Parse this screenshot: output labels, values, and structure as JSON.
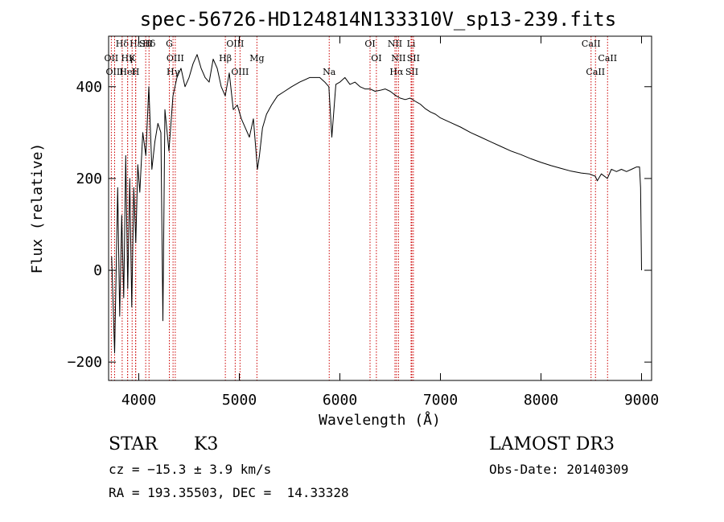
{
  "chart_data": {
    "type": "line",
    "title": "spec-56726-HD124814N133310V_sp13-239.fits",
    "xlabel": "Wavelength (Å)",
    "ylabel": "Flux (relative)",
    "xlim": [
      3700,
      9100
    ],
    "ylim": [
      -240,
      510
    ],
    "x_ticks": [
      4000,
      5000,
      6000,
      7000,
      8000,
      9000
    ],
    "x_tick_labels": [
      "4000",
      "5000",
      "6000",
      "7000",
      "8000",
      "9000"
    ],
    "y_ticks": [
      -200,
      0,
      200,
      400
    ],
    "y_tick_labels": [
      "−200",
      "0",
      "200",
      "400"
    ],
    "line_color": "#000000",
    "marker_color": "#cc0000",
    "series": [
      {
        "name": "flux",
        "x": [
          3730,
          3760,
          3790,
          3810,
          3830,
          3850,
          3870,
          3890,
          3910,
          3930,
          3950,
          3970,
          3990,
          4010,
          4040,
          4070,
          4100,
          4130,
          4160,
          4190,
          4220,
          4240,
          4260,
          4300,
          4340,
          4380,
          4420,
          4460,
          4500,
          4540,
          4580,
          4620,
          4660,
          4700,
          4740,
          4780,
          4820,
          4860,
          4900,
          4940,
          4980,
          5020,
          5060,
          5100,
          5140,
          5180,
          5200,
          5230,
          5270,
          5320,
          5380,
          5450,
          5520,
          5600,
          5700,
          5800,
          5850,
          5890,
          5920,
          5960,
          6000,
          6050,
          6100,
          6150,
          6200,
          6250,
          6300,
          6350,
          6400,
          6450,
          6500,
          6560,
          6600,
          6650,
          6700,
          6750,
          6800,
          6850,
          6900,
          6950,
          7000,
          7100,
          7200,
          7300,
          7400,
          7500,
          7600,
          7700,
          7800,
          7900,
          8000,
          8100,
          8200,
          8300,
          8400,
          8480,
          8540,
          8560,
          8600,
          8660,
          8700,
          8750,
          8800,
          8850,
          8900,
          8950,
          8980,
          8990,
          9000
        ],
        "y": [
          30,
          -180,
          180,
          -100,
          120,
          -60,
          250,
          -40,
          200,
          -80,
          180,
          60,
          230,
          170,
          300,
          250,
          400,
          220,
          280,
          320,
          300,
          -110,
          350,
          260,
          380,
          420,
          440,
          400,
          420,
          450,
          470,
          440,
          420,
          410,
          460,
          440,
          400,
          380,
          430,
          350,
          360,
          330,
          310,
          290,
          330,
          220,
          250,
          310,
          340,
          360,
          380,
          390,
          400,
          410,
          420,
          420,
          410,
          400,
          290,
          405,
          410,
          420,
          405,
          410,
          400,
          395,
          395,
          390,
          392,
          395,
          390,
          380,
          375,
          372,
          375,
          368,
          362,
          352,
          345,
          340,
          332,
          322,
          312,
          300,
          290,
          280,
          270,
          260,
          252,
          243,
          235,
          228,
          222,
          216,
          212,
          210,
          205,
          195,
          210,
          200,
          220,
          215,
          220,
          215,
          220,
          225,
          225,
          180,
          0
        ]
      }
    ],
    "line_markers": [
      {
        "label": "Hδ",
        "wavelength": 3835
      },
      {
        "label": "OII",
        "wavelength": 3727
      },
      {
        "label": "OIII",
        "wavelength": 3760
      },
      {
        "label": "Hε",
        "wavelength": 3970
      },
      {
        "label": "K",
        "wavelength": 3934
      },
      {
        "label": "HeI",
        "wavelength": 3889
      },
      {
        "label": "SII",
        "wavelength": 4069
      },
      {
        "label": "Hγ",
        "wavelength": 3889
      },
      {
        "label": "H",
        "wavelength": 3968
      },
      {
        "label": "Hδ",
        "wavelength": 4102
      },
      {
        "label": "OIII",
        "wavelength": 4363
      },
      {
        "label": "Hγ",
        "wavelength": 4341
      },
      {
        "label": "G",
        "wavelength": 4304
      },
      {
        "label": "Hβ",
        "wavelength": 4861
      },
      {
        "label": "OIII",
        "wavelength": 5007
      },
      {
        "label": "OIII",
        "wavelength": 4959
      },
      {
        "label": "Mg",
        "wavelength": 5175
      },
      {
        "label": "Na",
        "wavelength": 5894
      },
      {
        "label": "OI",
        "wavelength": 6300
      },
      {
        "label": "OI",
        "wavelength": 6363
      },
      {
        "label": "Hα",
        "wavelength": 6563
      },
      {
        "label": "NII",
        "wavelength": 6548
      },
      {
        "label": "NII",
        "wavelength": 6583
      },
      {
        "label": "SII",
        "wavelength": 6716
      },
      {
        "label": "Li",
        "wavelength": 6708
      },
      {
        "label": "SII",
        "wavelength": 6731
      },
      {
        "label": "CaII",
        "wavelength": 8542
      },
      {
        "label": "CaII",
        "wavelength": 8498
      },
      {
        "label": "CaII",
        "wavelength": 8662
      }
    ]
  },
  "info": {
    "object_class": "STAR",
    "subclass": "K3",
    "survey": "LAMOST DR3",
    "redshift_text": "cz = −15.3 ± 3.9 km/s",
    "obs_date_text": "Obs-Date: 20140309",
    "coords_text": "RA = 193.35503, DEC =  14.33328"
  }
}
